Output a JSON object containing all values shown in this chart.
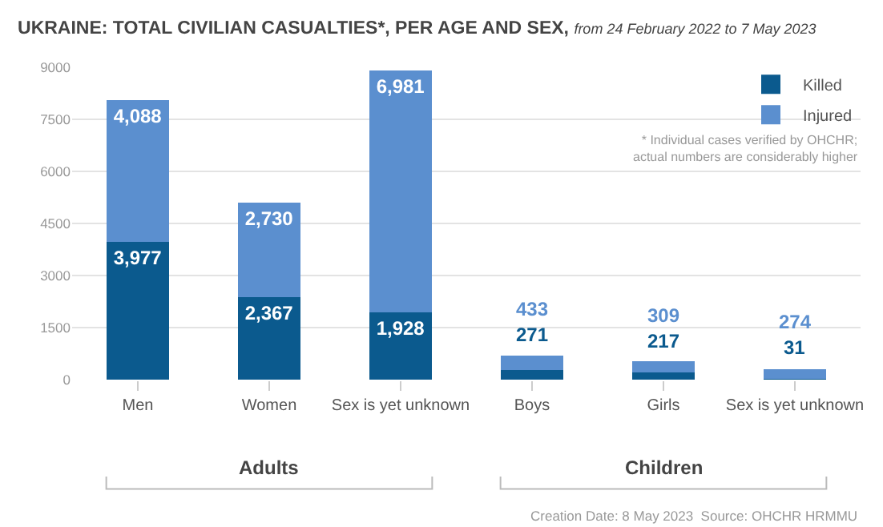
{
  "chart_data": {
    "type": "bar",
    "title": "UKRAINE: TOTAL CIVILIAN CASUALTIES*, PER AGE AND SEX,",
    "subtitle": "from 24 February 2022 to 7 May 2023",
    "categories": [
      "Men",
      "Women",
      "Sex is yet unknown",
      "Boys",
      "Girls",
      "Sex is yet unknown"
    ],
    "series": [
      {
        "name": "Killed",
        "color": "#0b5a8e",
        "values": [
          3977,
          2367,
          1928,
          271,
          217,
          31
        ],
        "value_labels": [
          "3,977",
          "2,367",
          "1,928",
          "271",
          "217",
          "31"
        ]
      },
      {
        "name": "Injured",
        "color": "#5b8fcf",
        "values": [
          4088,
          2730,
          6981,
          433,
          309,
          274
        ],
        "value_labels": [
          "4,088",
          "2,730",
          "6,981",
          "433",
          "309",
          "274"
        ]
      }
    ],
    "stacked": true,
    "ylim": [
      0,
      9000
    ],
    "yticks": [
      0,
      1500,
      3000,
      4500,
      6000,
      7500,
      9000
    ],
    "grid": "y",
    "legend": "top right",
    "annotations": [
      "* Individual cases verified by OHCHR;\nactual numbers are considerably higher",
      "Adults",
      "Children",
      "Creation Date: 8 May 2023  Source: OHCHR HRMMU"
    ]
  }
}
